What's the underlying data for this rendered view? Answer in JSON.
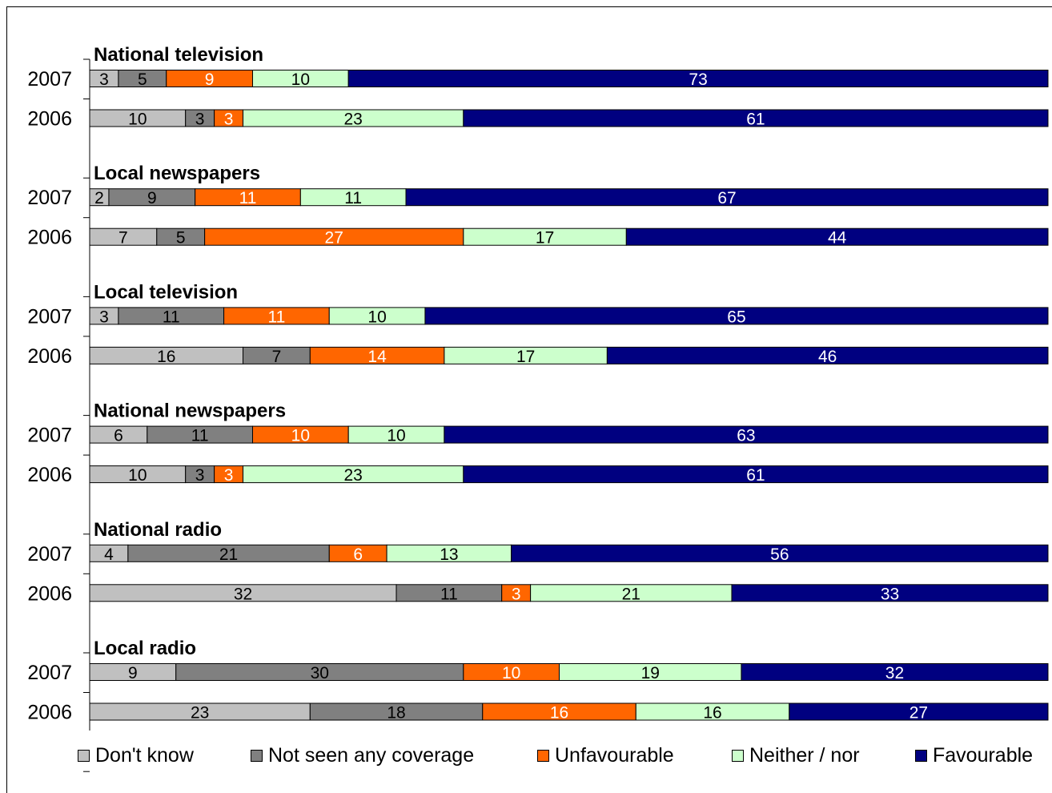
{
  "chart_data": {
    "type": "bar",
    "stacked": true,
    "orientation": "horizontal",
    "percent_scale": true,
    "legend_position": "bottom",
    "series": [
      {
        "name": "Don't know",
        "color": "#c0c0c0",
        "label_color": "#000000"
      },
      {
        "name": "Not seen any coverage",
        "color": "#808080",
        "label_color": "#000000"
      },
      {
        "name": "Unfavourable",
        "color": "#ff6600",
        "label_color": "#ffffff"
      },
      {
        "name": "Neither / nor",
        "color": "#ccffcc",
        "label_color": "#000000"
      },
      {
        "name": "Favourable",
        "color": "#000080",
        "label_color": "#ffffff"
      }
    ],
    "groups": [
      {
        "title": "National television",
        "rows": [
          {
            "year": "2007",
            "values": [
              3,
              5,
              9,
              10,
              73
            ]
          },
          {
            "year": "2006",
            "values": [
              10,
              3,
              3,
              23,
              61
            ]
          }
        ]
      },
      {
        "title": "Local newspapers",
        "rows": [
          {
            "year": "2007",
            "values": [
              2,
              9,
              11,
              11,
              67
            ]
          },
          {
            "year": "2006",
            "values": [
              7,
              5,
              27,
              17,
              44
            ]
          }
        ]
      },
      {
        "title": "Local television",
        "rows": [
          {
            "year": "2007",
            "values": [
              3,
              11,
              11,
              10,
              65
            ]
          },
          {
            "year": "2006",
            "values": [
              16,
              7,
              14,
              17,
              46
            ]
          }
        ]
      },
      {
        "title": "National newspapers",
        "rows": [
          {
            "year": "2007",
            "values": [
              6,
              11,
              10,
              10,
              63
            ]
          },
          {
            "year": "2006",
            "values": [
              10,
              3,
              3,
              23,
              61
            ]
          }
        ]
      },
      {
        "title": "National radio",
        "rows": [
          {
            "year": "2007",
            "values": [
              4,
              21,
              6,
              13,
              56
            ]
          },
          {
            "year": "2006",
            "values": [
              32,
              11,
              3,
              21,
              33
            ]
          }
        ]
      },
      {
        "title": "Local radio",
        "rows": [
          {
            "year": "2007",
            "values": [
              9,
              30,
              10,
              19,
              32
            ]
          },
          {
            "year": "2006",
            "values": [
              23,
              18,
              16,
              16,
              27
            ]
          }
        ]
      }
    ]
  }
}
